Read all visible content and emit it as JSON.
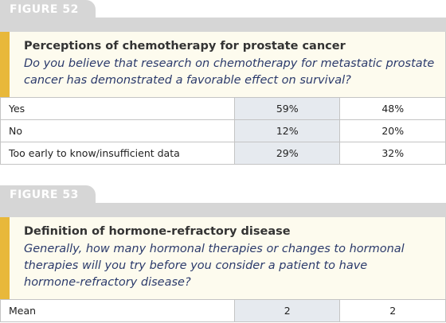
{
  "figures": [
    {
      "label": "FIGURE 52",
      "title": "Perceptions of chemotherapy for prostate cancer",
      "question": "Do you believe that research on chemotherapy for metastatic prostate cancer has demonstrated a favorable effect on survival?",
      "rows": [
        [
          "Yes",
          "59%",
          "48%"
        ],
        [
          "No",
          "12%",
          "20%"
        ],
        [
          "Too early to know/insufficient data",
          "29%",
          "32%"
        ]
      ]
    },
    {
      "label": "FIGURE 53",
      "title": "Definition of hormone-refractory disease",
      "question": "Generally, how many hormonal therapies or changes to hormonal therapies will you try before you consider a patient to have hormone-refractory disease?",
      "rows": [
        [
          "Mean",
          "2",
          "2"
        ]
      ]
    }
  ]
}
